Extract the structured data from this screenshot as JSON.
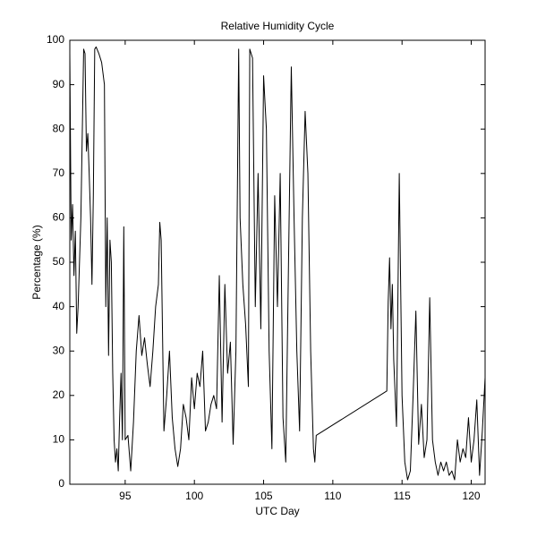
{
  "chart_data": {
    "type": "line",
    "title": "Relative Humidity Cycle",
    "xlabel": "UTC Day",
    "ylabel": "Percentage (%)",
    "color": "#000000",
    "x": [
      91.0,
      91.1,
      91.2,
      91.3,
      91.4,
      91.5,
      91.6,
      91.8,
      92.0,
      92.1,
      92.2,
      92.3,
      92.4,
      92.5,
      92.6,
      92.7,
      92.8,
      92.9,
      93.1,
      93.3,
      93.5,
      93.6,
      93.7,
      93.8,
      93.9,
      94.0,
      94.1,
      94.2,
      94.3,
      94.4,
      94.5,
      94.6,
      94.7,
      94.8,
      94.9,
      95.0,
      95.2,
      95.4,
      95.6,
      95.8,
      96.0,
      96.2,
      96.4,
      96.6,
      96.8,
      97.0,
      97.2,
      97.4,
      97.5,
      97.6,
      97.8,
      98.0,
      98.2,
      98.4,
      98.6,
      98.8,
      99.0,
      99.2,
      99.4,
      99.6,
      99.8,
      100.0,
      100.2,
      100.4,
      100.6,
      100.8,
      101.0,
      101.2,
      101.4,
      101.6,
      101.8,
      102.0,
      102.2,
      102.4,
      102.6,
      102.8,
      103.0,
      103.2,
      103.3,
      103.5,
      103.7,
      103.9,
      104.0,
      104.2,
      104.4,
      104.6,
      104.8,
      105.0,
      105.2,
      105.4,
      105.6,
      105.8,
      106.0,
      106.2,
      106.4,
      106.6,
      106.8,
      107.0,
      107.2,
      107.4,
      107.6,
      107.8,
      108.0,
      108.2,
      108.4,
      108.6,
      108.7,
      108.8,
      113.9,
      114.0,
      114.1,
      114.2,
      114.3,
      114.4,
      114.6,
      114.8,
      115.0,
      115.2,
      115.4,
      115.6,
      115.8,
      116.0,
      116.2,
      116.4,
      116.6,
      116.8,
      117.0,
      117.2,
      117.4,
      117.6,
      117.8,
      118.0,
      118.2,
      118.4,
      118.6,
      118.8,
      119.0,
      119.2,
      119.4,
      119.6,
      119.8,
      120.0,
      120.2,
      120.4,
      120.6,
      120.8,
      121.0
    ],
    "values": [
      97,
      55,
      63,
      47,
      57,
      34,
      40,
      60,
      98,
      97,
      75,
      79,
      70,
      60,
      45,
      65,
      98,
      98.5,
      97,
      95,
      90,
      40,
      60,
      29,
      55,
      50,
      25,
      10,
      5,
      8,
      3,
      15,
      25,
      10,
      58,
      10,
      11,
      3,
      14,
      30,
      38,
      29,
      33,
      27,
      22,
      30,
      40,
      45,
      59,
      55,
      12,
      20,
      30,
      15,
      8,
      4,
      8,
      18,
      15,
      10,
      24,
      17,
      25,
      22,
      30,
      12,
      14,
      18,
      20,
      17,
      47,
      14,
      45,
      25,
      32,
      9,
      30,
      98,
      60,
      45,
      36,
      22,
      98,
      96,
      40,
      70,
      35,
      92,
      80,
      30,
      8,
      65,
      40,
      70,
      15,
      5,
      50,
      94,
      60,
      30,
      12,
      60,
      84,
      70,
      30,
      8,
      5,
      11,
      21,
      41,
      51,
      35,
      45,
      28,
      13,
      70,
      20,
      5,
      1,
      3,
      20,
      39,
      9,
      18,
      6,
      10,
      42,
      10,
      5,
      2,
      5,
      3,
      5,
      2,
      3,
      1,
      10,
      5,
      8,
      6,
      15,
      5,
      10,
      19,
      2,
      12,
      24
    ],
    "xlim": [
      91,
      121
    ],
    "ylim": [
      0,
      100
    ],
    "xticks": [
      95,
      100,
      105,
      110,
      115,
      120
    ],
    "yticks": [
      0,
      10,
      20,
      30,
      40,
      50,
      60,
      70,
      80,
      90,
      100
    ]
  }
}
